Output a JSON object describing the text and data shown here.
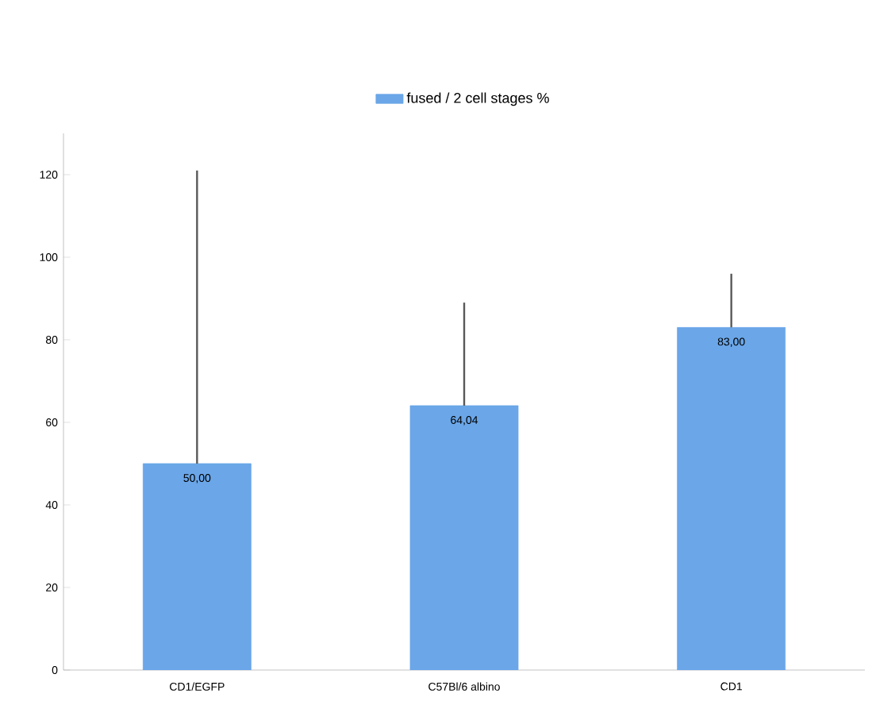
{
  "chart_data": {
    "type": "bar",
    "categories": [
      "CD1/EGFP",
      "C57Bl/6 albino",
      "CD1"
    ],
    "series": [
      {
        "name": "fused /  2 cell stages %",
        "color": "#6aa6e8",
        "values": [
          50,
          64.04,
          83
        ],
        "errors": [
          [
            50,
            121
          ],
          [
            64.04,
            89
          ],
          [
            83,
            96
          ]
        ],
        "value_labels": [
          "50,00",
          "64,04",
          "83,00"
        ]
      }
    ],
    "ylim": [
      0,
      130
    ],
    "yticks": [
      0,
      20,
      40,
      60,
      80,
      100,
      120
    ],
    "legend": "top",
    "grid": false
  }
}
